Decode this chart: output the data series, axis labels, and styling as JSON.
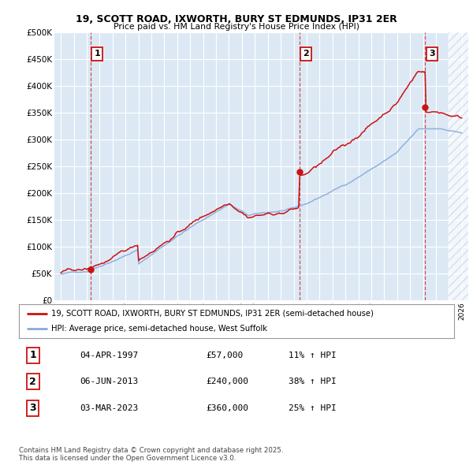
{
  "title1": "19, SCOTT ROAD, IXWORTH, BURY ST EDMUNDS, IP31 2ER",
  "title2": "Price paid vs. HM Land Registry's House Price Index (HPI)",
  "background_color": "#dce9f5",
  "sale_dates": [
    1997.28,
    2013.43,
    2023.17
  ],
  "sale_prices": [
    57000,
    240000,
    360000
  ],
  "sale_labels": [
    "1",
    "2",
    "3"
  ],
  "hpi_color": "#88aadd",
  "price_color": "#cc1111",
  "dashed_color": "#cc3333",
  "ylim": [
    0,
    500000
  ],
  "yticks": [
    0,
    50000,
    100000,
    150000,
    200000,
    250000,
    300000,
    350000,
    400000,
    450000,
    500000
  ],
  "ytick_labels": [
    "£0",
    "£50K",
    "£100K",
    "£150K",
    "£200K",
    "£250K",
    "£300K",
    "£350K",
    "£400K",
    "£450K",
    "£500K"
  ],
  "xlim": [
    1994.5,
    2026.5
  ],
  "legend_property_label": "19, SCOTT ROAD, IXWORTH, BURY ST EDMUNDS, IP31 2ER (semi-detached house)",
  "legend_hpi_label": "HPI: Average price, semi-detached house, West Suffolk",
  "table_rows": [
    [
      "1",
      "04-APR-1997",
      "£57,000",
      "11% ↑ HPI"
    ],
    [
      "2",
      "06-JUN-2013",
      "£240,000",
      "38% ↑ HPI"
    ],
    [
      "3",
      "03-MAR-2023",
      "£360,000",
      "25% ↑ HPI"
    ]
  ],
  "footnote": "Contains HM Land Registry data © Crown copyright and database right 2025.\nThis data is licensed under the Open Government Licence v3.0."
}
